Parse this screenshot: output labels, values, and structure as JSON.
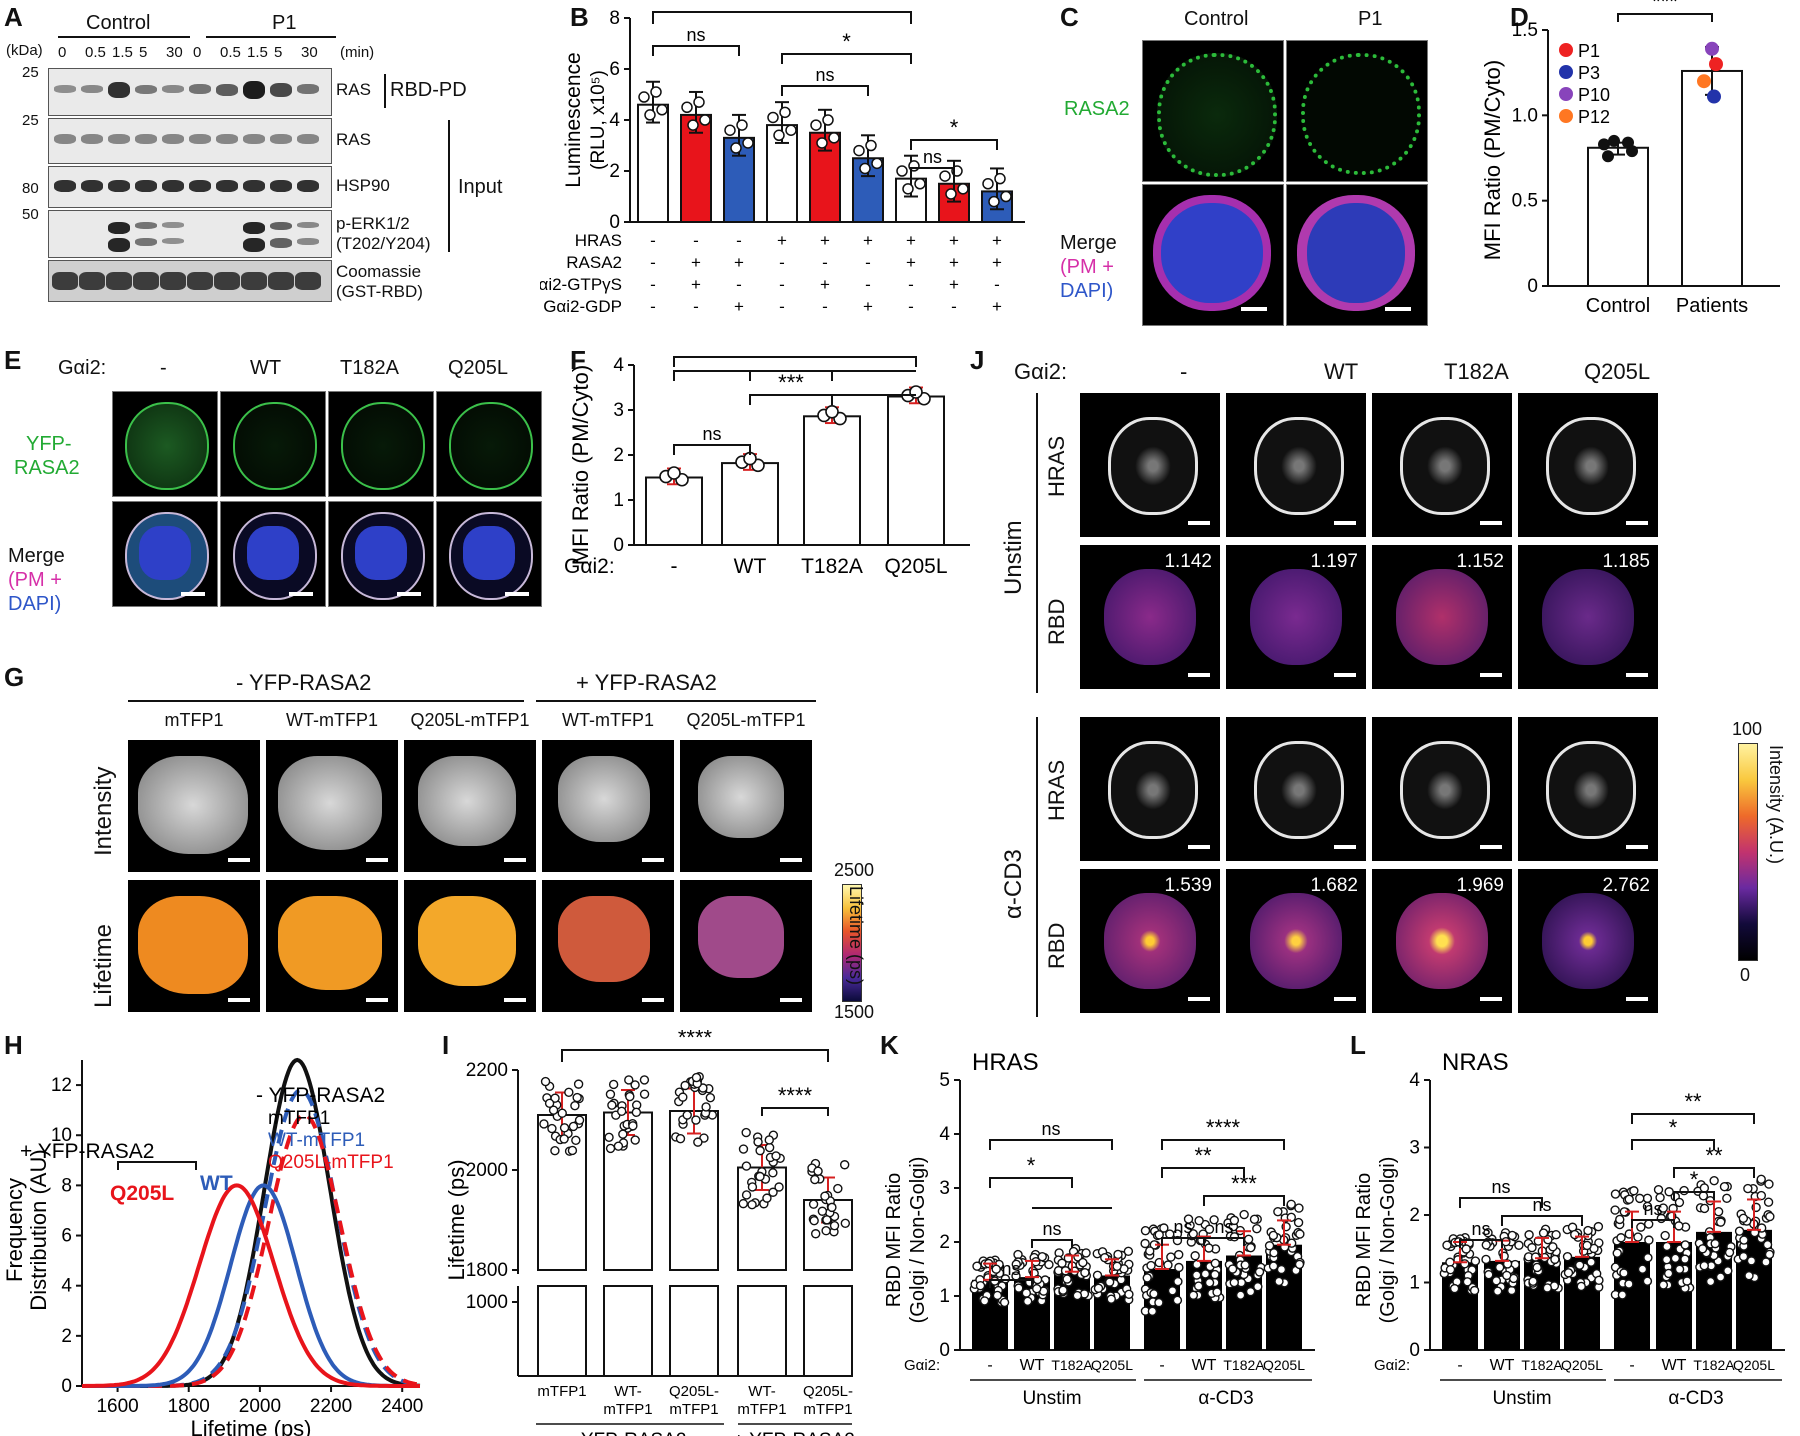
{
  "panels": {
    "A": {
      "label": "A",
      "kda": "(kDa)",
      "min": "(min)",
      "groups": [
        "Control",
        "P1"
      ],
      "times": [
        "0",
        "0.5",
        "1.5",
        "5",
        "30",
        "0",
        "0.5",
        "1.5",
        "5",
        "30"
      ],
      "markers": [
        "25",
        "25",
        "80",
        "50"
      ],
      "rows": [
        "RAS",
        "RAS",
        "HSP90",
        "p-ERK1/2",
        "(T202/Y204)",
        "Coomassie",
        "(GST-RBD)"
      ],
      "bracket1": "RBD-PD",
      "bracket2": "Input"
    },
    "B": {
      "label": "B"
    },
    "C": {
      "label": "C",
      "cols": [
        "Control",
        "P1"
      ],
      "row1": "RASA2",
      "row2a": "Merge",
      "row2b": "(PM +",
      "row2c": "DAPI)"
    },
    "D": {
      "label": "D"
    },
    "E": {
      "label": "E",
      "gai2": "Gαi2:",
      "cols": [
        "-",
        "WT",
        "T182A",
        "Q205L"
      ],
      "row1a": "YFP-",
      "row1b": "RASA2",
      "row2a": "Merge",
      "row2b": "(PM +",
      "row2c": "DAPI)"
    },
    "F": {
      "label": "F"
    },
    "G": {
      "label": "G",
      "header_minus": "- YFP-RASA2",
      "header_plus": "+ YFP-RASA2",
      "cols": [
        "mTFP1",
        "WT-mTFP1",
        "Q205L-mTFP1",
        "WT-mTFP1",
        "Q205L-mTFP1"
      ],
      "row1": "Intensity",
      "row2": "Lifetime",
      "cbar_top": "2500",
      "cbar_bottom": "1500",
      "cbar_label": "Lifetime (ps)"
    },
    "H": {
      "label": "H"
    },
    "I": {
      "label": "I"
    },
    "J": {
      "label": "J",
      "gai2": "Gαi2:",
      "cols": [
        "-",
        "WT",
        "T182A",
        "Q205L"
      ],
      "group1": "Unstim",
      "group2": "α-CD3",
      "rowlabels": [
        "HRAS",
        "RBD",
        "HRAS",
        "RBD"
      ],
      "values_unstim": [
        "1.142",
        "1.197",
        "1.152",
        "1.185"
      ],
      "values_cd3": [
        "1.539",
        "1.682",
        "1.969",
        "2.762"
      ],
      "cbar_top": "100",
      "cbar_bottom": "0",
      "cbar_label": "Intensity (A.U.)"
    },
    "K": {
      "label": "K"
    },
    "L": {
      "label": "L"
    }
  },
  "chart_data": [
    {
      "id": "B",
      "type": "bar",
      "ylabel": "Luminescence (RLU, x10⁵)",
      "ylim": [
        0,
        8
      ],
      "yticks": [
        0,
        2,
        4,
        6,
        8
      ],
      "values": [
        4.6,
        4.2,
        3.3,
        3.8,
        3.5,
        2.5,
        1.7,
        1.5,
        1.2
      ],
      "colors": [
        "#ffffff",
        "#e8141b",
        "#2d5cb8",
        "#ffffff",
        "#e8141b",
        "#2d5cb8",
        "#ffffff",
        "#e8141b",
        "#2d5cb8"
      ],
      "conditions": [
        {
          "name": "HRAS",
          "values": [
            "-",
            "-",
            "-",
            "+",
            "+",
            "+",
            "+",
            "+",
            "+"
          ]
        },
        {
          "name": "RASA2",
          "values": [
            "-",
            "+",
            "+",
            "-",
            "-",
            "-",
            "+",
            "+",
            "+"
          ]
        },
        {
          "name": "Gαi2-GTPγS",
          "values": [
            "-",
            "+",
            "-",
            "-",
            "+",
            "-",
            "-",
            "+",
            "-"
          ]
        },
        {
          "name": "Gαi2-GDP",
          "values": [
            "-",
            "-",
            "+",
            "-",
            "-",
            "+",
            "-",
            "-",
            "+"
          ]
        }
      ],
      "significance": [
        "*",
        "ns",
        "*",
        "ns",
        "*",
        "ns"
      ]
    },
    {
      "id": "D",
      "type": "bar",
      "ylabel": "MFI Ratio (PM/Cyto)",
      "ylim": [
        0,
        1.5
      ],
      "yticks": [
        0,
        0.5,
        1.0,
        1.5
      ],
      "categories": [
        "Control",
        "Patients"
      ],
      "values": [
        0.81,
        1.26
      ],
      "legend": [
        "P1",
        "P3",
        "P10",
        "P12"
      ],
      "legend_colors": [
        "#ee2222",
        "#2233aa",
        "#8844bb",
        "#ff7722"
      ],
      "significance": [
        "***"
      ]
    },
    {
      "id": "F",
      "type": "bar",
      "ylabel": "MFI Ratio (PM/Cyto)",
      "xlabel": "Gαi2:",
      "ylim": [
        0,
        4
      ],
      "yticks": [
        0,
        1,
        2,
        3,
        4
      ],
      "categories": [
        "-",
        "WT",
        "T182A",
        "Q205L"
      ],
      "values": [
        1.5,
        1.82,
        2.86,
        3.3
      ],
      "significance": [
        "****",
        "***",
        "ns"
      ]
    },
    {
      "id": "H",
      "type": "line",
      "xlabel": "Lifetime (ps)",
      "ylabel": "Frequency Distribution (AU)",
      "xlim": [
        1500,
        2450
      ],
      "ylim": [
        0,
        13
      ],
      "xticks": [
        1600,
        1800,
        2000,
        2200,
        2400
      ],
      "yticks": [
        0,
        2,
        4,
        6,
        8,
        10,
        12
      ],
      "series": [
        {
          "name": "mTFP1",
          "color": "#111111",
          "dash": "solid",
          "peak": 2105,
          "sigma": 92,
          "height": 13.0
        },
        {
          "name": "WT-mTFP1",
          "color": "#2d5cb8",
          "dash": "dash",
          "peak": 2115,
          "sigma": 100,
          "height": 11.8
        },
        {
          "name": "Q205L-mTFP1",
          "color": "#e8141b",
          "dash": "dash",
          "peak": 2125,
          "sigma": 100,
          "height": 10.8
        },
        {
          "name": "WT",
          "color": "#2d5cb8",
          "dash": "solid",
          "peak": 2010,
          "sigma": 92,
          "height": 8.0
        },
        {
          "name": "Q205L",
          "color": "#e8141b",
          "dash": "solid",
          "peak": 1935,
          "sigma": 105,
          "height": 8.0
        }
      ],
      "annotations": [
        "- YFP-RASA2",
        "+ YFP-RASA2",
        "Q205L",
        "WT",
        "mTFP1",
        "WT-mTFP1",
        "Q205L-mTFP1"
      ]
    },
    {
      "id": "I",
      "type": "bar",
      "ylabel": "Lifetime (ps)",
      "yticks": [
        1000,
        1800,
        2000,
        2200
      ],
      "categories": [
        "mTFP1",
        "WT-mTFP1",
        "Q205L-mTFP1",
        "WT-mTFP1",
        "Q205L-mTFP1"
      ],
      "values": [
        2110,
        2115,
        2118,
        2005,
        1940
      ],
      "groups": [
        "- YFP-RASA2",
        "+ YFP-RASA2"
      ],
      "significance": [
        "****",
        "****"
      ]
    },
    {
      "id": "K",
      "type": "bar",
      "title": "HRAS",
      "ylabel": "RBD MFI Ratio (Golgi / Non-Golgi)",
      "ylim": [
        0,
        5
      ],
      "yticks": [
        0,
        1,
        2,
        3,
        4,
        5
      ],
      "categories": [
        "-",
        "WT",
        "T182A",
        "Q205L",
        "-",
        "WT",
        "T182A",
        "Q205L"
      ],
      "values": [
        1.3,
        1.35,
        1.45,
        1.38,
        1.5,
        1.65,
        1.75,
        1.95
      ],
      "groups": [
        "Unstim",
        "α-CD3"
      ],
      "xprefix": "Gαi2:",
      "significance": [
        "ns",
        "*",
        "ns",
        "ns",
        "****",
        "**",
        "***",
        "ns",
        "ns"
      ]
    },
    {
      "id": "L",
      "type": "bar",
      "title": "NRAS",
      "ylabel": "RBD MFI Ratio (Golgi / Non-Golgi)",
      "ylim": [
        0,
        4
      ],
      "yticks": [
        0,
        1,
        2,
        3,
        4
      ],
      "categories": [
        "-",
        "WT",
        "T182A",
        "Q205L",
        "-",
        "WT",
        "T182A",
        "Q205L"
      ],
      "values": [
        1.3,
        1.32,
        1.36,
        1.38,
        1.6,
        1.6,
        1.75,
        1.78
      ],
      "groups": [
        "Unstim",
        "α-CD3"
      ],
      "xprefix": "Gαi2:",
      "significance": [
        "ns",
        "ns",
        "ns",
        "ns",
        "**",
        "*",
        "**",
        "*"
      ]
    }
  ]
}
